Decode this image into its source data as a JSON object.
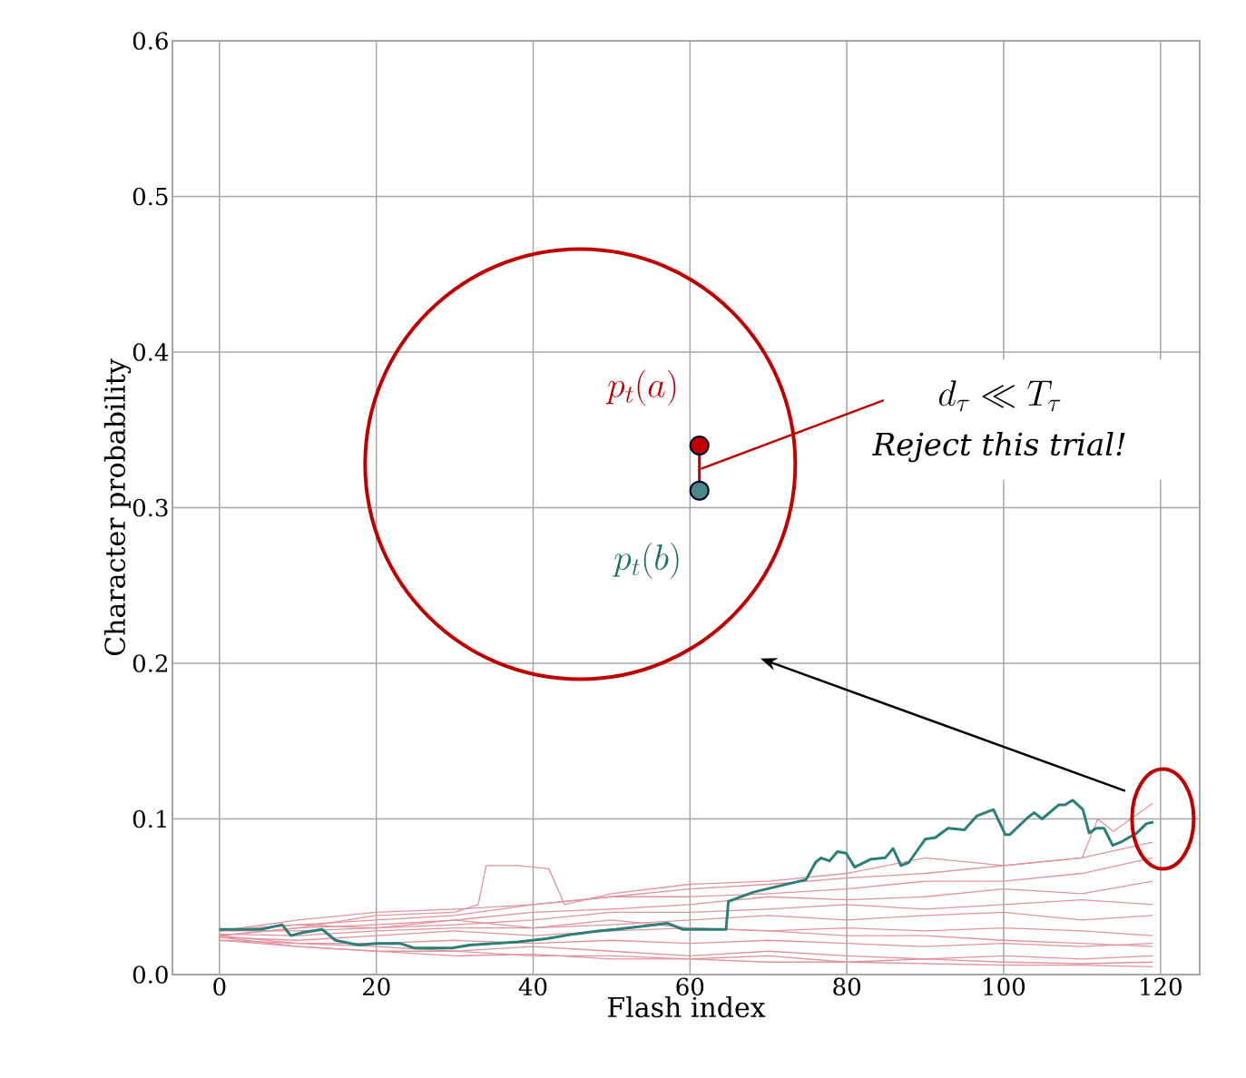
{
  "chart_data": {
    "type": "line",
    "xlabel": "Flash index",
    "ylabel": "Character probability",
    "xlim": [
      -6,
      125
    ],
    "ylim": [
      0,
      0.6
    ],
    "xticks": [
      0,
      20,
      40,
      60,
      80,
      100,
      120
    ],
    "yticks": [
      {
        "value": 0,
        "label": "0.0"
      },
      0.1,
      0.2,
      0.3,
      0.4,
      0.5,
      0.6
    ],
    "grid": true,
    "marker": "none",
    "line_style": "solid",
    "annotations": [
      "p_t(a)",
      "d_\\tau \\ll T_\\tau",
      "Reject this trial!",
      "p_t(b)"
    ],
    "series": [
      {
        "color": "#e3939c",
        "x": [
          0,
          10,
          20,
          30,
          40,
          50,
          60,
          70,
          80,
          90,
          100,
          110,
          112,
          114,
          119
        ],
        "values": [
          0.028,
          0.035,
          0.04,
          0.042,
          0.045,
          0.05,
          0.055,
          0.058,
          0.062,
          0.065,
          0.07,
          0.075,
          0.1,
          0.092,
          0.11
        ]
      },
      {
        "color": "#e3939c",
        "x": [
          0,
          10,
          20,
          30,
          33,
          34,
          38,
          42,
          44,
          50,
          60,
          70,
          80,
          90,
          100,
          110,
          119
        ],
        "values": [
          0.025,
          0.03,
          0.038,
          0.04,
          0.045,
          0.07,
          0.07,
          0.068,
          0.045,
          0.052,
          0.058,
          0.06,
          0.065,
          0.075,
          0.07,
          0.075,
          0.085
        ]
      },
      {
        "color": "#e3939c",
        "x": [
          0,
          10,
          20,
          30,
          40,
          50,
          60,
          70,
          80,
          90,
          100,
          110,
          119
        ],
        "values": [
          0.028,
          0.032,
          0.035,
          0.038,
          0.045,
          0.05,
          0.05,
          0.052,
          0.055,
          0.06,
          0.06,
          0.065,
          0.075
        ]
      },
      {
        "color": "#e3939c",
        "x": [
          0,
          10,
          20,
          30,
          40,
          50,
          60,
          70,
          80,
          90,
          100,
          110,
          119
        ],
        "values": [
          0.025,
          0.03,
          0.032,
          0.035,
          0.04,
          0.042,
          0.045,
          0.05,
          0.048,
          0.05,
          0.055,
          0.052,
          0.06
        ]
      },
      {
        "color": "#e3939c",
        "x": [
          0,
          10,
          20,
          30,
          40,
          50,
          60,
          70,
          80,
          90,
          100,
          110,
          119
        ],
        "values": [
          0.028,
          0.028,
          0.03,
          0.032,
          0.035,
          0.04,
          0.04,
          0.042,
          0.045,
          0.042,
          0.045,
          0.048,
          0.045
        ]
      },
      {
        "color": "#e3939c",
        "x": [
          0,
          10,
          20,
          30,
          40,
          50,
          60,
          70,
          80,
          90,
          100,
          110,
          119
        ],
        "values": [
          0.026,
          0.025,
          0.028,
          0.03,
          0.03,
          0.032,
          0.035,
          0.038,
          0.035,
          0.038,
          0.04,
          0.035,
          0.038
        ]
      },
      {
        "color": "#e3939c",
        "x": [
          0,
          10,
          20,
          30,
          40,
          50,
          60,
          70,
          80,
          90,
          100,
          110,
          119
        ],
        "values": [
          0.024,
          0.022,
          0.025,
          0.028,
          0.025,
          0.028,
          0.03,
          0.028,
          0.03,
          0.028,
          0.03,
          0.028,
          0.025
        ]
      },
      {
        "color": "#e3939c",
        "x": [
          0,
          10,
          20,
          30,
          40,
          50,
          60,
          70,
          80,
          90,
          100,
          110,
          119
        ],
        "values": [
          0.022,
          0.02,
          0.02,
          0.022,
          0.02,
          0.022,
          0.02,
          0.022,
          0.02,
          0.018,
          0.02,
          0.018,
          0.02
        ]
      },
      {
        "color": "#e3939c",
        "x": [
          0,
          10,
          20,
          30,
          40,
          50,
          60,
          70,
          80,
          90,
          100,
          110,
          119
        ],
        "values": [
          0.025,
          0.02,
          0.018,
          0.015,
          0.018,
          0.015,
          0.012,
          0.015,
          0.012,
          0.01,
          0.012,
          0.01,
          0.012
        ]
      },
      {
        "color": "#e3939c",
        "x": [
          0,
          10,
          20,
          30,
          40,
          50,
          60,
          70,
          80,
          90,
          100,
          110,
          119
        ],
        "values": [
          0.022,
          0.018,
          0.015,
          0.012,
          0.013,
          0.01,
          0.01,
          0.008,
          0.008,
          0.007,
          0.006,
          0.006,
          0.005
        ]
      },
      {
        "color": "#e3939c",
        "x": [
          0,
          10,
          20,
          30,
          40,
          50,
          60,
          70,
          80,
          90,
          100,
          110,
          119
        ],
        "values": [
          0.024,
          0.018,
          0.015,
          0.015,
          0.012,
          0.012,
          0.01,
          0.012,
          0.008,
          0.01,
          0.008,
          0.007,
          0.008
        ]
      },
      {
        "color": "#e3939c",
        "x": [
          0,
          10,
          20,
          30,
          40,
          50,
          60,
          70,
          80,
          90,
          100,
          110,
          119
        ],
        "values": [
          0.028,
          0.032,
          0.03,
          0.035,
          0.03,
          0.035,
          0.03,
          0.028,
          0.025,
          0.025,
          0.022,
          0.02,
          0.018
        ]
      },
      {
        "color": "#2a8078",
        "x": [
          0,
          5.3,
          8,
          9.1,
          10.6,
          13.1,
          14.8,
          17.7,
          19.9,
          23,
          24.9,
          27.5,
          29.7,
          31.9,
          35,
          38.1,
          41.7,
          45.2,
          48.3,
          50.5,
          54,
          57.1,
          59.1,
          64.6,
          64.9,
          68.1,
          74.8,
          76,
          76.7,
          77.8,
          78.8,
          79.9,
          81,
          83,
          84.9,
          85.9,
          86.9,
          87.9,
          90,
          91.3,
          92.9,
          95,
          96.6,
          98.7,
          100.2,
          100.8,
          103.1,
          103.9,
          104.9,
          107,
          107.8,
          108.8,
          110.1,
          110.9,
          111.8,
          112.8,
          113.9,
          114.9,
          117,
          118.2,
          119.1
        ],
        "values": [
          0.029,
          0.029,
          0.032,
          0.025,
          0.027,
          0.029,
          0.022,
          0.019,
          0.02,
          0.02,
          0.017,
          0.017,
          0.017,
          0.019,
          0.02,
          0.021,
          0.023,
          0.026,
          0.028,
          0.029,
          0.031,
          0.033,
          0.029,
          0.029,
          0.047,
          0.053,
          0.061,
          0.072,
          0.075,
          0.073,
          0.079,
          0.078,
          0.069,
          0.074,
          0.075,
          0.081,
          0.07,
          0.072,
          0.087,
          0.088,
          0.094,
          0.093,
          0.102,
          0.106,
          0.09,
          0.09,
          0.101,
          0.104,
          0.1,
          0.109,
          0.109,
          0.112,
          0.106,
          0.091,
          0.094,
          0.094,
          0.083,
          0.085,
          0.091,
          0.097,
          0.098
        ]
      }
    ]
  }
}
